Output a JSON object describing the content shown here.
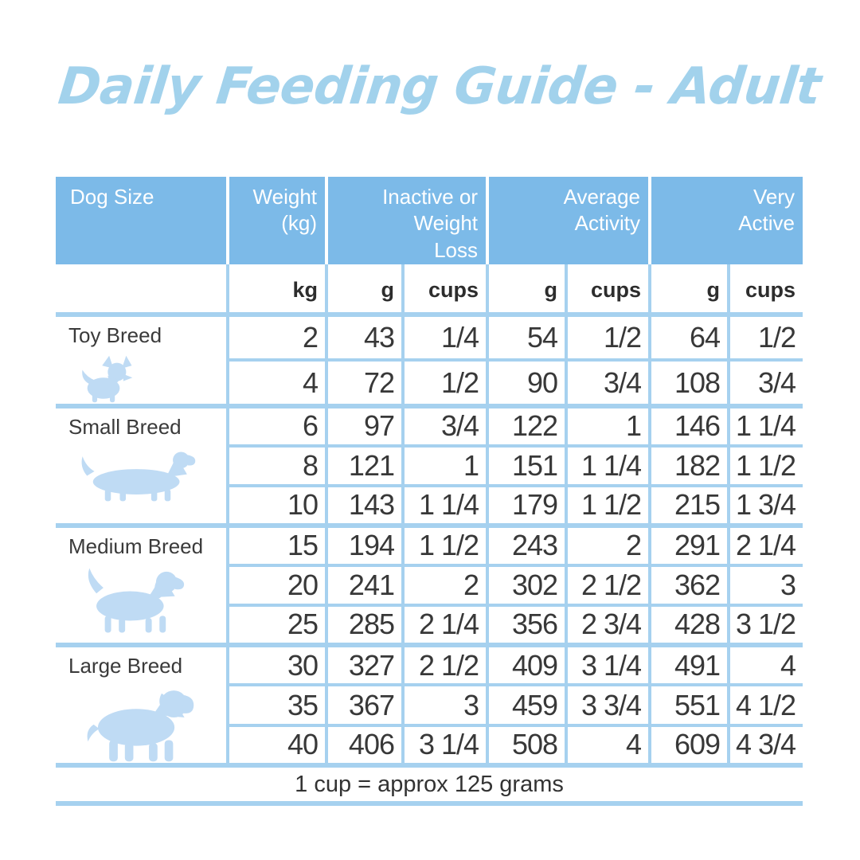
{
  "title": "Daily Feeding Guide - Adult",
  "colors": {
    "header_bg": "#7cbae8",
    "grid_line": "#a6d1ef",
    "icon_fill": "#bfdbf4",
    "title_color": "#a2d2ec",
    "body_text": "#383838"
  },
  "table": {
    "header": {
      "dog_size": "Dog Size",
      "weight": [
        "Weight",
        "(kg)"
      ],
      "inactive": [
        "Inactive or",
        "Weight",
        "Loss"
      ],
      "average": [
        "Average",
        "Activity"
      ],
      "very_active": [
        "Very",
        "Active"
      ]
    },
    "subheader": [
      "kg",
      "g",
      "cups",
      "g",
      "cups",
      "g",
      "cups"
    ],
    "groups": [
      {
        "label": "Toy Breed",
        "icon": "chihuahua-icon",
        "rows": [
          [
            "2",
            "43",
            "1/4",
            "54",
            "1/2",
            "64",
            "1/2"
          ],
          [
            "4",
            "72",
            "1/2",
            "90",
            "3/4",
            "108",
            "3/4"
          ]
        ]
      },
      {
        "label": "Small Breed",
        "icon": "dachshund-icon",
        "rows": [
          [
            "6",
            "97",
            "3/4",
            "122",
            "1",
            "146",
            "1 1/4"
          ],
          [
            "8",
            "121",
            "1",
            "151",
            "1 1/4",
            "182",
            "1 1/2"
          ],
          [
            "10",
            "143",
            "1 1/4",
            "179",
            "1 1/2",
            "215",
            "1 3/4"
          ]
        ]
      },
      {
        "label": "Medium Breed",
        "icon": "beagle-icon",
        "rows": [
          [
            "15",
            "194",
            "1 1/2",
            "243",
            "2",
            "291",
            "2 1/4"
          ],
          [
            "20",
            "241",
            "2",
            "302",
            "2 1/2",
            "362",
            "3"
          ],
          [
            "25",
            "285",
            "2 1/4",
            "356",
            "2 3/4",
            "428",
            "3 1/2"
          ]
        ]
      },
      {
        "label": "Large Breed",
        "icon": "mastiff-icon",
        "rows": [
          [
            "30",
            "327",
            "2 1/2",
            "409",
            "3 1/4",
            "491",
            "4"
          ],
          [
            "35",
            "367",
            "3",
            "459",
            "3 3/4",
            "551",
            "4 1/2"
          ],
          [
            "40",
            "406",
            "3 1/4",
            "508",
            "4",
            "609",
            "4 3/4"
          ]
        ]
      }
    ],
    "footnote": "1 cup = approx 125 grams"
  }
}
